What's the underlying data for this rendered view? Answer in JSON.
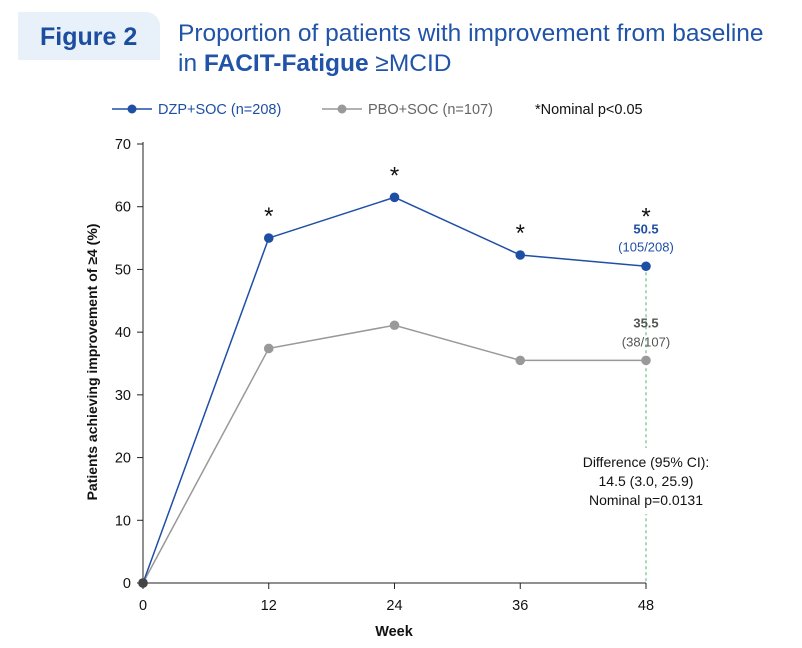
{
  "figure_label": "Figure 2",
  "title": {
    "part1": "Proportion of patients with improvement from baseline in ",
    "bold": "FACIT-Fatigue",
    "part2": " ≥MCID"
  },
  "colors": {
    "dzp": "#1f4fa5",
    "pbo": "#999999",
    "accent": "#2154a8",
    "diff_line": "#6cc28a"
  },
  "chart_data": {
    "type": "line",
    "xlabel": "Week",
    "ylabel": "Patients achieving improvement of ≥4 (%)",
    "x": [
      0,
      12,
      24,
      36,
      48
    ],
    "x_ticks": [
      "0",
      "12",
      "24",
      "36",
      "48"
    ],
    "y_ticks": [
      "0",
      "10",
      "20",
      "30",
      "40",
      "50",
      "60",
      "70"
    ],
    "xlim": [
      0,
      48
    ],
    "ylim": [
      0,
      70
    ],
    "legend_position": "top",
    "series": [
      {
        "name": "DZP+SOC (n=208)",
        "values": [
          0,
          55.0,
          61.5,
          52.3,
          50.5
        ]
      },
      {
        "name": "PBO+SOC (n=107)",
        "values": [
          0,
          37.4,
          41.1,
          35.5,
          35.5
        ]
      }
    ],
    "significance_note": "*Nominal p<0.05",
    "significance_marker": "*",
    "significant_weeks": [
      12,
      24,
      36,
      48
    ],
    "end_labels": {
      "dzp_value": "50.5",
      "dzp_count": "(105/208)",
      "pbo_value": "35.5",
      "pbo_count": "(38/107)"
    },
    "difference_box": {
      "line1": "Difference (95% CI):",
      "line2": "14.5 (3.0, 25.9)",
      "line3": "Nominal p=0.0131"
    }
  }
}
